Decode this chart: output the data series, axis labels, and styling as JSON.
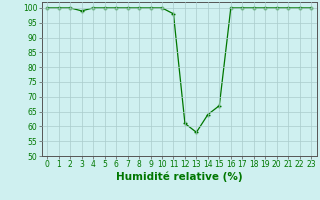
{
  "x": [
    0,
    1,
    2,
    3,
    4,
    5,
    6,
    7,
    8,
    9,
    10,
    11,
    12,
    13,
    14,
    15,
    16,
    17,
    18,
    19,
    20,
    21,
    22,
    23
  ],
  "y": [
    100,
    100,
    100,
    99,
    100,
    100,
    100,
    100,
    100,
    100,
    100,
    98,
    61,
    58,
    64,
    67,
    100,
    100,
    100,
    100,
    100,
    100,
    100,
    100
  ],
  "line_color": "#007700",
  "marker": "+",
  "marker_color": "#007700",
  "bg_color": "#cff0f0",
  "grid_color": "#aacccc",
  "tick_color": "#007700",
  "xlabel": "Humidité relative (%)",
  "xlabel_color": "#007700",
  "xlim_min": -0.5,
  "xlim_max": 23.5,
  "ylim_min": 50,
  "ylim_max": 102,
  "yticks": [
    50,
    55,
    60,
    65,
    70,
    75,
    80,
    85,
    90,
    95,
    100
  ],
  "xticks": [
    0,
    1,
    2,
    3,
    4,
    5,
    6,
    7,
    8,
    9,
    10,
    11,
    12,
    13,
    14,
    15,
    16,
    17,
    18,
    19,
    20,
    21,
    22,
    23
  ],
  "tick_fontsize": 5.5,
  "xlabel_fontsize": 7.5
}
